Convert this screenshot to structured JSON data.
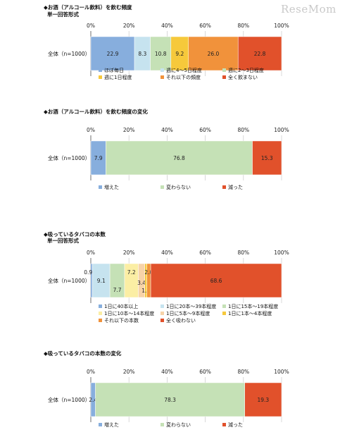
{
  "watermark": "ReseMom",
  "chart_data": [
    {
      "type": "bar",
      "orientation": "horizontal-stacked-100",
      "title": "◆お酒（アルコール飲料）を飲む頻度",
      "subtitle": "単一回答形式",
      "xlim": [
        0,
        100
      ],
      "ticks": [
        "0%",
        "20%",
        "40%",
        "60%",
        "80%",
        "100%"
      ],
      "categories": [
        "全体（n=1000）"
      ],
      "legend_columns": 3,
      "series": [
        {
          "name": "ほぼ毎日",
          "values": [
            22.9
          ],
          "label": "22.9",
          "color": "#87aedd"
        },
        {
          "name": "週に4～5日程度",
          "values": [
            8.3
          ],
          "label": "8.3",
          "color": "#c6e3ef"
        },
        {
          "name": "週に2～3日程度",
          "values": [
            10.8
          ],
          "label": "10.8",
          "color": "#c5e1b6"
        },
        {
          "name": "週に1日程度",
          "values": [
            9.2
          ],
          "label": "9.2",
          "color": "#f6c93b"
        },
        {
          "name": "それ以下の頻度",
          "values": [
            26.0
          ],
          "label": "26.0",
          "color": "#f1923b"
        },
        {
          "name": "全く飲まない",
          "values": [
            22.8
          ],
          "label": "22.8",
          "color": "#e1512b"
        }
      ]
    },
    {
      "type": "bar",
      "orientation": "horizontal-stacked-100",
      "title": "◆お酒（アルコール飲料）を飲む頻度の変化",
      "subtitle": "",
      "xlim": [
        0,
        100
      ],
      "ticks": [
        "0%",
        "20%",
        "40%",
        "60%",
        "80%",
        "100%"
      ],
      "categories": [
        "全体（n=1000）"
      ],
      "legend_columns": 3,
      "series": [
        {
          "name": "増えた",
          "values": [
            7.9
          ],
          "label": "7.9",
          "color": "#87aedd"
        },
        {
          "name": "変わらない",
          "values": [
            76.8
          ],
          "label": "76.8",
          "color": "#c5e1b6"
        },
        {
          "name": "減った",
          "values": [
            15.3
          ],
          "label": "15.3",
          "color": "#e1512b"
        }
      ]
    },
    {
      "type": "bar",
      "orientation": "horizontal-stacked-100",
      "title": "◆吸っているタバコの本数",
      "subtitle": "単一回答形式",
      "xlim": [
        0,
        100
      ],
      "ticks": [
        "0%",
        "20%",
        "40%",
        "60%",
        "80%",
        "100%"
      ],
      "categories": [
        "全体（n=1000）"
      ],
      "legend_columns": 3,
      "series": [
        {
          "name": "1日に40本以上",
          "values": [
            0.9
          ],
          "label": "0.9",
          "color": "#87aedd"
        },
        {
          "name": "1日に20本～39本程度",
          "values": [
            9.1
          ],
          "label": "9.1",
          "color": "#c6e3ef"
        },
        {
          "name": "1日に15本～19本程度",
          "values": [
            7.7
          ],
          "label": "7.7",
          "color": "#c5e1b6"
        },
        {
          "name": "1日に10本～14本程度",
          "values": [
            7.2
          ],
          "label": "7.2",
          "color": "#fbeea4"
        },
        {
          "name": "1日に5本～9本程度",
          "values": [
            3.4
          ],
          "label": "3.4",
          "color": "#f7d3a8"
        },
        {
          "name": "1日に1本～4本程度",
          "values": [
            1.1
          ],
          "label": "1.1",
          "color": "#f6c93b"
        },
        {
          "name": "それ以下の本数",
          "values": [
            2.0
          ],
          "label": "2.0",
          "color": "#f1923b"
        },
        {
          "name": "全く吸わない",
          "values": [
            68.6
          ],
          "label": "68.6",
          "color": "#e1512b"
        }
      ]
    },
    {
      "type": "bar",
      "orientation": "horizontal-stacked-100",
      "title": "◆吸っているタバコの本数の変化",
      "subtitle": "",
      "xlim": [
        0,
        100
      ],
      "ticks": [
        "0%",
        "20%",
        "40%",
        "60%",
        "80%",
        "100%"
      ],
      "categories": [
        "全体（n=1000）"
      ],
      "legend_columns": 3,
      "series": [
        {
          "name": "増えた",
          "values": [
            2.4
          ],
          "label": "2.4",
          "color": "#87aedd"
        },
        {
          "name": "変わらない",
          "values": [
            78.3
          ],
          "label": "78.3",
          "color": "#c5e1b6"
        },
        {
          "name": "減った",
          "values": [
            19.3
          ],
          "label": "19.3",
          "color": "#e1512b"
        }
      ]
    }
  ]
}
